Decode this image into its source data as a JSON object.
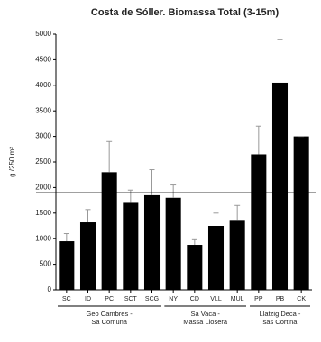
{
  "chart_data": {
    "type": "bar",
    "title": "Costa de Sóller. Biomassa Total (3-15m)",
    "ylabel": "g /250 m²",
    "categories": [
      "SC",
      "ID",
      "PC",
      "SCT",
      "SCG",
      "NY",
      "CD",
      "VLL",
      "MUL",
      "PP",
      "PB",
      "CK"
    ],
    "values": [
      950,
      1320,
      2300,
      1700,
      1850,
      1800,
      880,
      1250,
      1350,
      2650,
      4050,
      3000
    ],
    "errors": [
      150,
      250,
      600,
      250,
      500,
      250,
      100,
      250,
      300,
      550,
      850,
      0
    ],
    "color": "#000000",
    "reference_line": 1900,
    "groups": [
      {
        "lines": [
          "Geo Cambres -",
          "Sa Comuna"
        ],
        "range": [
          0,
          4
        ]
      },
      {
        "lines": [
          "Sa Vaca -",
          "Massa Llosera"
        ],
        "range": [
          5,
          8
        ]
      },
      {
        "lines": [
          "Llatzig Deca -",
          "sas Cortina"
        ],
        "range": [
          9,
          11
        ]
      }
    ],
    "ylim": [
      0,
      5000
    ],
    "yticks": [
      0,
      500,
      1000,
      1500,
      2000,
      2500,
      3000,
      3500,
      4000,
      4500,
      5000
    ]
  }
}
